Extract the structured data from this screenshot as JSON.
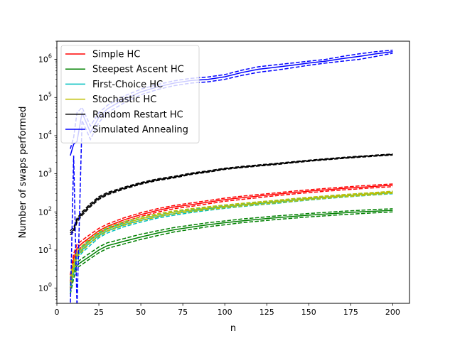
{
  "chart_data": {
    "type": "line",
    "title": "",
    "xlabel": "n",
    "ylabel": "Number of swaps performed",
    "yscale": "log",
    "xlim": [
      0,
      210
    ],
    "ylim": [
      0.4,
      3000000
    ],
    "grid": false,
    "legend_position": "top-left",
    "x_ticks": [
      0,
      25,
      50,
      75,
      100,
      125,
      150,
      175,
      200
    ],
    "x_tick_labels": [
      "0",
      "25",
      "50",
      "75",
      "100",
      "125",
      "150",
      "175",
      "200"
    ],
    "y_ticks": [
      1,
      10,
      100,
      1000,
      10000,
      100000,
      1000000
    ],
    "y_tick_exponents": [
      "0",
      "1",
      "2",
      "3",
      "4",
      "5",
      "6"
    ],
    "y_tick_base": "10",
    "x": [
      8,
      10,
      12,
      15,
      20,
      25,
      30,
      40,
      50,
      60,
      70,
      80,
      90,
      100,
      110,
      120,
      130,
      140,
      150,
      160,
      170,
      180,
      190,
      200
    ],
    "series": [
      {
        "name": "Simple HC",
        "color": "#ff0000",
        "values": [
          1.5,
          6,
          11,
          15,
          22,
          32,
          42,
          62,
          85,
          110,
          135,
          155,
          180,
          210,
          235,
          260,
          290,
          320,
          350,
          380,
          410,
          440,
          470,
          500
        ],
        "upper": [
          2.2,
          8,
          14,
          18,
          26,
          37,
          48,
          70,
          95,
          122,
          148,
          172,
          198,
          230,
          258,
          285,
          315,
          348,
          380,
          412,
          445,
          478,
          510,
          540
        ],
        "lower": [
          1,
          4.5,
          9,
          12.5,
          19,
          28,
          37,
          55,
          76,
          99,
          122,
          140,
          163,
          190,
          213,
          236,
          265,
          293,
          320,
          348,
          376,
          404,
          432,
          460
        ]
      },
      {
        "name": "Steepest Ascent HC",
        "color": "#008000",
        "values": [
          1,
          2.5,
          4,
          5,
          7,
          10,
          13,
          17,
          22,
          28,
          34,
          40,
          46,
          52,
          58,
          64,
          70,
          76,
          82,
          88,
          94,
          100,
          105,
          110
        ],
        "upper": [
          1.4,
          3.2,
          4.8,
          6,
          8.5,
          12,
          15.5,
          20,
          26,
          32,
          39,
          45,
          52,
          58,
          65,
          71,
          78,
          84,
          91,
          97,
          104,
          110,
          116,
          121
        ],
        "lower": [
          0.7,
          1.8,
          3.4,
          4.2,
          6,
          8.5,
          11,
          14.5,
          19,
          24,
          30,
          35,
          41,
          46,
          52,
          57,
          63,
          68,
          74,
          79,
          85,
          90,
          95,
          100
        ]
      },
      {
        "name": "First-Choice HC",
        "color": "#00bfbf",
        "values": [
          1.2,
          3.5,
          7,
          10,
          16,
          24,
          32,
          46,
          60,
          76,
          90,
          105,
          120,
          135,
          150,
          165,
          180,
          200,
          220,
          240,
          260,
          280,
          300,
          320
        ],
        "upper": [
          1.8,
          4.5,
          8.5,
          12,
          19,
          28,
          37,
          52,
          67,
          84,
          100,
          115,
          131,
          147,
          163,
          179,
          195,
          216,
          237,
          258,
          279,
          300,
          321,
          340
        ],
        "lower": [
          0.8,
          2.7,
          5.8,
          8.5,
          13.5,
          21,
          28,
          41,
          54,
          69,
          82,
          96,
          110,
          124,
          138,
          152,
          166,
          185,
          204,
          223,
          242,
          261,
          280,
          300
        ]
      },
      {
        "name": "Stochastic HC",
        "color": "#bfbf00",
        "values": [
          1.3,
          4,
          8,
          11,
          18,
          26,
          35,
          50,
          66,
          82,
          98,
          112,
          126,
          140,
          155,
          170,
          186,
          205,
          225,
          245,
          265,
          285,
          305,
          330
        ],
        "upper": [
          1.9,
          5,
          9.5,
          13,
          21,
          30,
          40,
          56,
          73,
          90,
          107,
          122,
          137,
          152,
          168,
          184,
          201,
          221,
          242,
          263,
          284,
          305,
          326,
          350
        ],
        "lower": [
          0.9,
          3.1,
          6.7,
          9.3,
          15.5,
          22.5,
          31,
          44.5,
          59,
          74,
          89,
          102,
          115,
          128,
          142,
          156,
          171,
          189,
          208,
          227,
          246,
          265,
          284,
          310
        ]
      },
      {
        "name": "Random Restart HC",
        "color": "#000000",
        "values": [
          28,
          34,
          60,
          90,
          150,
          230,
          300,
          420,
          560,
          700,
          820,
          1000,
          1150,
          1350,
          1500,
          1650,
          1800,
          2000,
          2200,
          2400,
          2600,
          2800,
          3000,
          3200
        ],
        "upper": [
          32,
          39,
          68,
          100,
          165,
          250,
          322,
          445,
          590,
          735,
          860,
          1045,
          1200,
          1400,
          1555,
          1710,
          1865,
          2070,
          2275,
          2480,
          2685,
          2890,
          3095,
          3300
        ],
        "lower": [
          25,
          30,
          53,
          81,
          137,
          212,
          280,
          397,
          532,
          667,
          782,
          957,
          1102,
          1302,
          1447,
          1592,
          1737,
          1932,
          2127,
          2322,
          2517,
          2712,
          2907,
          3100
        ]
      },
      {
        "name": "Simulated Annealing",
        "color": "#0000ff",
        "values": [
          3000,
          6000,
          7000,
          40000,
          12000,
          30000,
          50000,
          90000,
          140000,
          190000,
          240000,
          280000,
          300000,
          350000,
          450000,
          550000,
          620000,
          700000,
          800000,
          900000,
          1050000,
          1200000,
          1400000,
          1600000
        ],
        "upper": [
          4500,
          9000,
          40000,
          55000,
          18000,
          40000,
          62000,
          110000,
          165000,
          220000,
          275000,
          320000,
          345000,
          400000,
          520000,
          640000,
          720000,
          800000,
          900000,
          1000000,
          1200000,
          1400000,
          1600000,
          1750000
        ],
        "lower": [
          0.3,
          3000,
          0.3,
          25000,
          8000,
          22000,
          40000,
          72000,
          118000,
          162000,
          205000,
          240000,
          258000,
          300000,
          380000,
          460000,
          520000,
          600000,
          700000,
          800000,
          900000,
          1000000,
          1200000,
          1450000
        ]
      }
    ]
  }
}
